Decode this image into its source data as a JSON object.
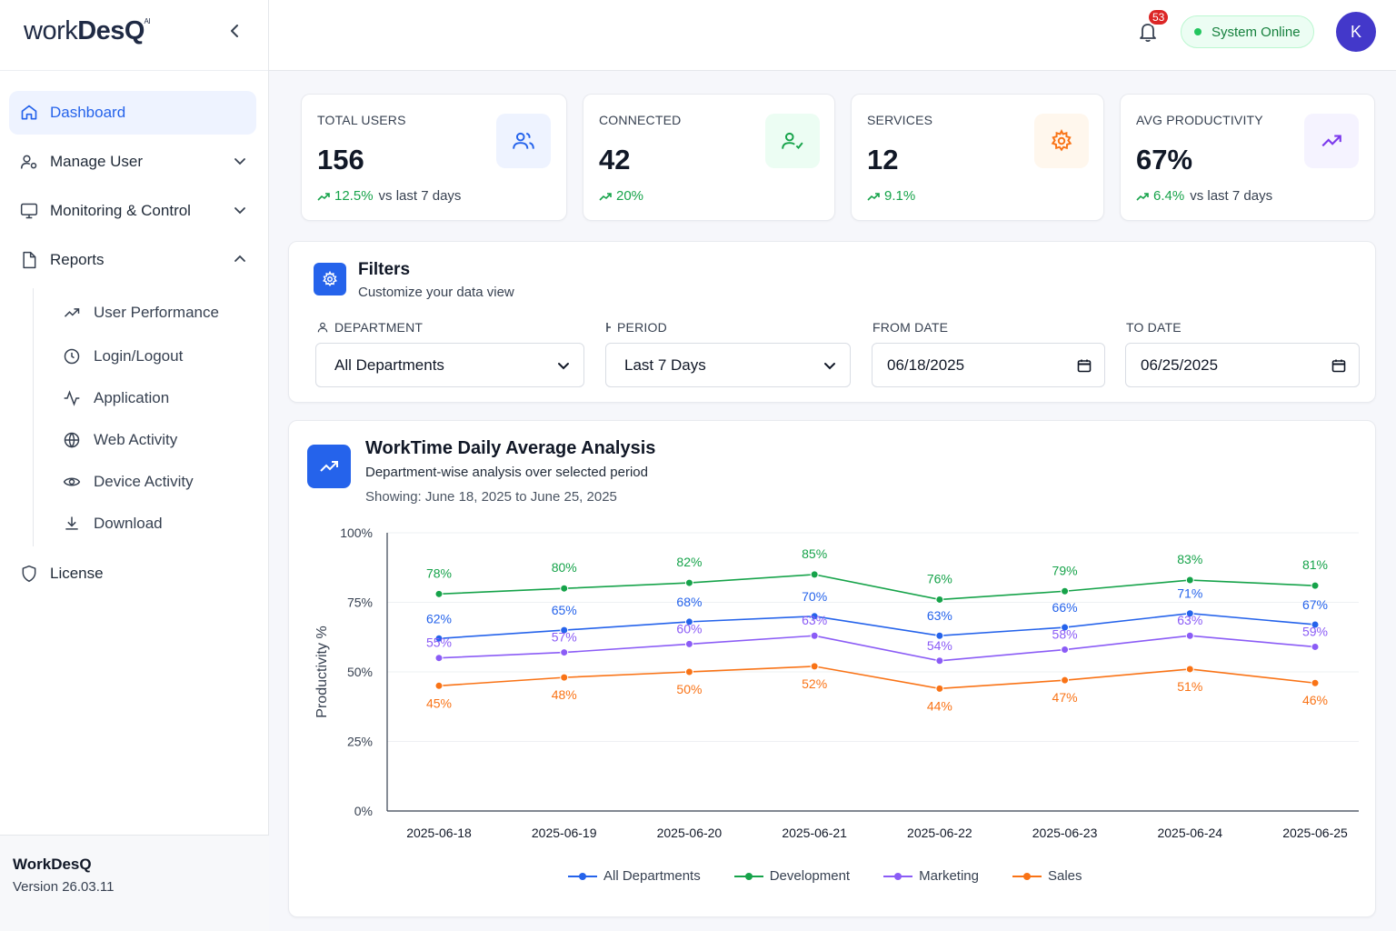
{
  "app": {
    "logo_main": "work",
    "logo_bold": "DesQ",
    "logo_sup": "AI"
  },
  "sidebar": {
    "items": [
      {
        "label": "Dashboard",
        "icon": "home-icon"
      },
      {
        "label": "Manage User",
        "icon": "user-settings-icon"
      },
      {
        "label": "Monitoring & Control",
        "icon": "monitor-icon"
      },
      {
        "label": "Reports",
        "icon": "file-icon"
      }
    ],
    "report_items": [
      {
        "label": "User Performance",
        "icon": "trending-up-icon"
      },
      {
        "label": "Login/Logout",
        "icon": "clock-icon"
      },
      {
        "label": "Application",
        "icon": "activity-icon"
      },
      {
        "label": "Web Activity",
        "icon": "globe-icon"
      },
      {
        "label": "Device Activity",
        "icon": "eye-icon"
      },
      {
        "label": "Download",
        "icon": "download-icon"
      }
    ],
    "license": "License",
    "footer": {
      "name": "WorkDesQ",
      "version": "Version 26.03.11"
    }
  },
  "header": {
    "notification_count": "53",
    "status": "System Online",
    "avatar_initial": "K"
  },
  "stats": [
    {
      "label": "TOTAL USERS",
      "value": "156",
      "change": "12.5%",
      "suffix": "vs last 7 days",
      "icon": "users-icon",
      "color": "#2563eb",
      "bg": "#eef3ff"
    },
    {
      "label": "CONNECTED",
      "value": "42",
      "change": "20%",
      "suffix": "",
      "icon": "user-check-icon",
      "color": "#16a34a",
      "bg": "#ecfdf3"
    },
    {
      "label": "SERVICES",
      "value": "12",
      "change": "9.1%",
      "suffix": "",
      "icon": "gear-icon",
      "color": "#f97316",
      "bg": "#fff7ed"
    },
    {
      "label": "AVG PRODUCTIVITY",
      "value": "67%",
      "change": "6.4%",
      "suffix": "vs last 7 days",
      "icon": "trending-up-icon",
      "color": "#7c3aed",
      "bg": "#f5f3ff"
    }
  ],
  "filters": {
    "title": "Filters",
    "subtitle": "Customize your data view",
    "department_label": "DEPARTMENT",
    "department_value": "All Departments",
    "period_label": "PERIOD",
    "period_value": "Last 7 Days",
    "from_label": "FROM DATE",
    "from_value": "06/18/2025",
    "to_label": "TO DATE",
    "to_value": "06/25/2025"
  },
  "chart_card": {
    "title": "WorkTime Daily Average Analysis",
    "subtitle": "Department-wise analysis over selected period",
    "range": "Showing: June 18, 2025 to June 25, 2025"
  },
  "chart_data": {
    "type": "line",
    "x": [
      "2025-06-18",
      "2025-06-19",
      "2025-06-20",
      "2025-06-21",
      "2025-06-22",
      "2025-06-23",
      "2025-06-24",
      "2025-06-25"
    ],
    "ylabel": "Productivity %",
    "ylim": [
      0,
      100
    ],
    "yticks": [
      "0%",
      "25%",
      "50%",
      "75%",
      "100%"
    ],
    "series": [
      {
        "name": "All Departments",
        "color": "#2563eb",
        "values": [
          62,
          65,
          68,
          70,
          63,
          66,
          71,
          67
        ]
      },
      {
        "name": "Development",
        "color": "#16a34a",
        "values": [
          78,
          80,
          82,
          85,
          76,
          79,
          83,
          81
        ]
      },
      {
        "name": "Marketing",
        "color": "#8b5cf6",
        "values": [
          55,
          57,
          60,
          63,
          54,
          58,
          63,
          59
        ]
      },
      {
        "name": "Sales",
        "color": "#f97316",
        "values": [
          45,
          48,
          50,
          52,
          44,
          47,
          51,
          46
        ]
      }
    ],
    "legend_position": "bottom",
    "grid": true
  }
}
